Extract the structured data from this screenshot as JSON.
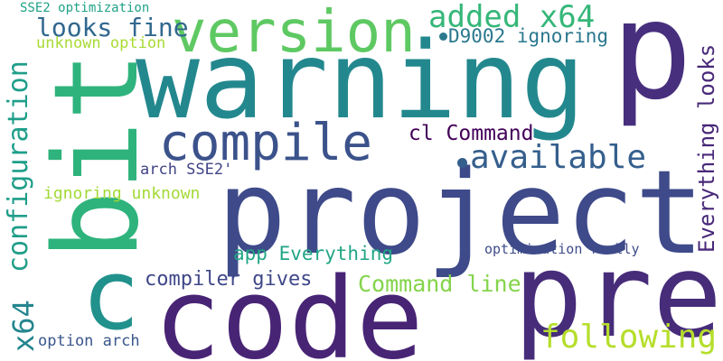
{
  "words": [
    {
      "key": "p",
      "text": "p",
      "color": "#472f7d",
      "rotated": false
    },
    {
      "key": "warning",
      "text": "warning",
      "color": "#23888e",
      "rotated": false
    },
    {
      "key": "project",
      "text": "project",
      "color": "#3e4a89",
      "rotated": false
    },
    {
      "key": "code",
      "text": "code",
      "color": "#482475",
      "rotated": false
    },
    {
      "key": "pre",
      "text": "pre",
      "color": "#472c7a",
      "rotated": false
    },
    {
      "key": "bit",
      "text": "bit",
      "color": "#2eb37c",
      "rotated": true
    },
    {
      "key": "c",
      "text": "c",
      "color": "#21918c",
      "rotated": false
    },
    {
      "key": "version",
      "text": "version",
      "color": "#5ec962",
      "rotated": false
    },
    {
      "key": "compile",
      "text": "compile",
      "color": "#3b528b",
      "rotated": false
    },
    {
      "key": "available",
      "text": "available",
      "color": "#355f8d",
      "rotated": false
    },
    {
      "key": "configuration",
      "text": "configuration",
      "color": "#1f9e89",
      "rotated": true
    },
    {
      "key": "added-x64",
      "text": "added x64",
      "color": "#35b779",
      "rotated": false
    },
    {
      "key": "looks-fine",
      "text": "looks fine",
      "color": "#31688e",
      "rotated": false
    },
    {
      "key": "d9002-ignoring",
      "text": "D9002 ignoring",
      "color": "#2a788e",
      "rotated": false
    },
    {
      "key": "everything-looks",
      "text": "Everything looks",
      "color": "#482878",
      "rotated": true
    },
    {
      "key": "cl-command",
      "text": "cl Command",
      "color": "#44015a",
      "rotated": false
    },
    {
      "key": "x64",
      "text": "x64",
      "color": "#25858e",
      "rotated": true
    },
    {
      "key": "following",
      "text": "following",
      "color": "#b5de2b",
      "rotated": false
    },
    {
      "key": "command-line",
      "text": "Command line",
      "color": "#84d44b",
      "rotated": false
    },
    {
      "key": "compiler-gives",
      "text": "compiler gives",
      "color": "#3f4788",
      "rotated": false
    },
    {
      "key": "app-everything",
      "text": "app Everything",
      "color": "#21a685",
      "rotated": false
    },
    {
      "key": "ignoring-unknown",
      "text": "ignoring unknown",
      "color": "#a2da37",
      "rotated": false
    },
    {
      "key": "arch-sse2",
      "text": "arch SSE2'",
      "color": "#414487",
      "rotated": false
    },
    {
      "key": "option-arch",
      "text": "option arch",
      "color": "#39568c",
      "rotated": false
    },
    {
      "key": "optimization-really",
      "text": "optimization really",
      "color": "#3e4c8a",
      "rotated": false
    },
    {
      "key": "unknown-option",
      "text": "unknown option",
      "color": "#a8db34",
      "rotated": false
    },
    {
      "key": "sse2-optimization",
      "text": "SSE2 optimization",
      "color": "#1fa187",
      "rotated": false
    }
  ]
}
